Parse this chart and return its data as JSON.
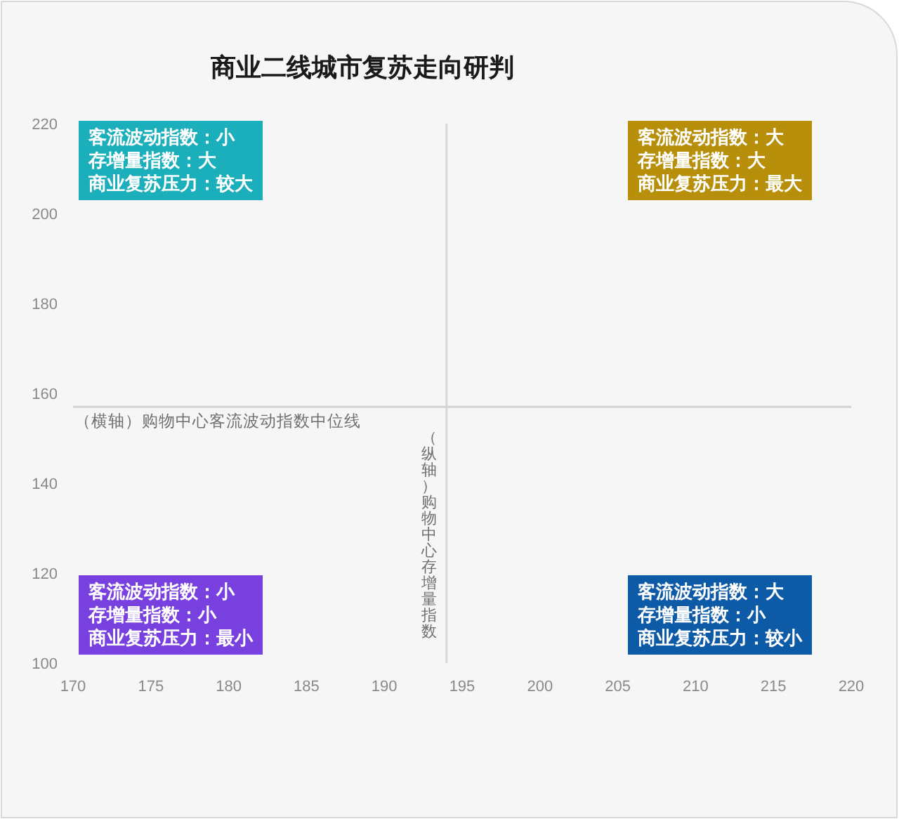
{
  "chart_data": {
    "type": "scatter",
    "title": "商业二线城市复苏走向研判",
    "xlim": [
      170,
      220
    ],
    "ylim": [
      100,
      220
    ],
    "xticks": [
      170,
      175,
      180,
      185,
      190,
      195,
      200,
      205,
      210,
      215,
      220
    ],
    "yticks": [
      100,
      120,
      140,
      160,
      180,
      200,
      220
    ],
    "ref_lines": [
      {
        "axis": "y",
        "value": 157,
        "label": "（横轴）购物中心客流波动指数中位线",
        "color": "#d2d2d2"
      },
      {
        "axis": "x",
        "value": 194,
        "label": "（纵轴）购物中心存增量指数",
        "color": "#d6d6d6"
      }
    ],
    "annotations": [
      "客流波动指数：小",
      "存增量指数：大",
      "商业复苏压力：较大",
      "客流波动指数：大",
      "存增量指数：大",
      "商业复苏压力：最大",
      "客流波动指数：小",
      "存增量指数：小",
      "商业复苏压力：最小",
      "客流波动指数：大",
      "存增量指数：小",
      "商业复苏压力：较小"
    ]
  }
}
